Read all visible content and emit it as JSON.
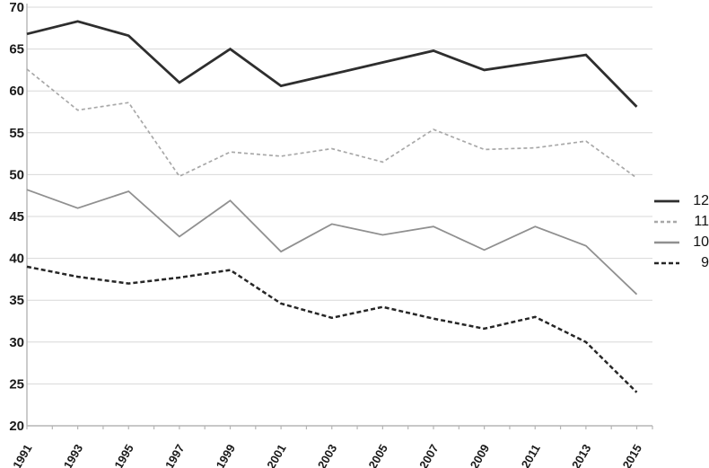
{
  "chart_data": {
    "type": "line",
    "title": "",
    "xlabel": "",
    "ylabel": "",
    "x": [
      1991,
      1993,
      1995,
      1997,
      1999,
      2001,
      2003,
      2005,
      2007,
      2009,
      2011,
      2013,
      2015
    ],
    "x_tick_labels": [
      "1991",
      "1993",
      "1995",
      "1997",
      "1999",
      "2001",
      "2003",
      "2005",
      "2007",
      "2009",
      "2011",
      "2013",
      "2015"
    ],
    "y_tick_labels": [
      "20",
      "25",
      "30",
      "35",
      "40",
      "45",
      "50",
      "55",
      "60",
      "65",
      "70"
    ],
    "ylim": [
      20,
      70
    ],
    "ytick_step": 5,
    "grid": "horizontal",
    "legend_position": "right",
    "minor_x_ticks_every_year": true,
    "series": [
      {
        "name": "12",
        "style": "solid",
        "color": "#2e2e2e",
        "width": 2.8,
        "dash": "",
        "values": [
          66.8,
          68.3,
          66.6,
          61.0,
          65.0,
          60.6,
          62.0,
          63.4,
          64.8,
          62.5,
          63.4,
          64.3,
          58.1
        ]
      },
      {
        "name": "11",
        "style": "dashed",
        "color": "#a8a8a8",
        "width": 1.7,
        "dash": "4 3",
        "values": [
          62.6,
          57.7,
          58.6,
          49.8,
          52.7,
          52.2,
          53.1,
          51.5,
          55.4,
          53.0,
          53.2,
          54.0,
          49.6
        ]
      },
      {
        "name": "10",
        "style": "solid",
        "color": "#909090",
        "width": 1.8,
        "dash": "",
        "values": [
          48.2,
          46.0,
          48.0,
          42.6,
          46.9,
          40.8,
          44.1,
          42.8,
          43.8,
          41.0,
          43.8,
          41.5,
          35.7
        ]
      },
      {
        "name": "9",
        "style": "dashed",
        "color": "#262626",
        "width": 2.5,
        "dash": "5 3",
        "values": [
          39.0,
          37.8,
          37.0,
          37.7,
          38.6,
          34.6,
          32.9,
          34.2,
          32.8,
          31.6,
          33.0,
          30.0,
          24.0
        ]
      }
    ],
    "colors": {
      "background": "#ffffff",
      "gridline": "#d8d8d8",
      "axis": "#b5b5b5",
      "tick": "#b5b5b5",
      "text": "#1a1a1a"
    }
  }
}
